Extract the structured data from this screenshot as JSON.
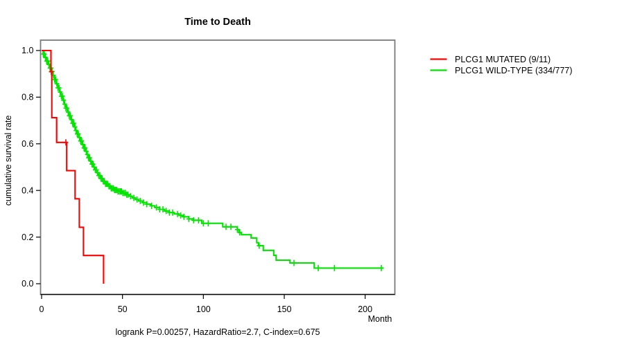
{
  "title": "Time to Death",
  "subtitle": "logrank P=0.00257, HazardRatio=2.7, C-index=0.675",
  "x_axis_label": "Month",
  "y_axis_label": "cumulative survival rate",
  "colors": {
    "mutated": "#ff0000",
    "wild_type": "#00e400",
    "box": "#7a7a7a",
    "axis": "#000000"
  },
  "legend": {
    "items": [
      {
        "label": "PLCG1 MUTATED (9/11)",
        "color": "#ff0000"
      },
      {
        "label": "PLCG1 WILD-TYPE (334/777)",
        "color": "#00e400"
      }
    ]
  },
  "chart_data": {
    "type": "line",
    "subtype": "kaplan-meier-step-curve",
    "title": "Time to Death",
    "xlabel": "Month",
    "ylabel": "cumulative survival rate",
    "footnote": "logrank P=0.00257, HazardRatio=2.7, C-index=0.675",
    "xlim": [
      0,
      218
    ],
    "ylim": [
      0,
      1
    ],
    "xticks": [
      0,
      50,
      100,
      150,
      200
    ],
    "yticks": [
      0.0,
      0.2,
      0.4,
      0.6,
      0.8,
      1.0
    ],
    "grid": false,
    "legend_position": "right-outside-top",
    "series": [
      {
        "name": "PLCG1 WILD-TYPE (334/777)",
        "color": "#00e400",
        "start": [
          0,
          1.0
        ],
        "steps": [
          [
            1,
            0.985
          ],
          [
            2,
            0.97
          ],
          [
            3,
            0.955
          ],
          [
            4,
            0.94
          ],
          [
            5,
            0.925
          ],
          [
            6,
            0.91
          ],
          [
            7,
            0.893
          ],
          [
            8,
            0.875
          ],
          [
            9,
            0.858
          ],
          [
            10,
            0.84
          ],
          [
            11,
            0.822
          ],
          [
            12,
            0.804
          ],
          [
            13,
            0.787
          ],
          [
            14,
            0.77
          ],
          [
            15,
            0.753
          ],
          [
            16,
            0.736
          ],
          [
            17,
            0.72
          ],
          [
            18,
            0.704
          ],
          [
            19,
            0.688
          ],
          [
            20,
            0.672
          ],
          [
            21,
            0.657
          ],
          [
            22,
            0.642
          ],
          [
            23,
            0.627
          ],
          [
            24,
            0.612
          ],
          [
            25,
            0.597
          ],
          [
            26,
            0.582
          ],
          [
            27,
            0.568
          ],
          [
            28,
            0.554
          ],
          [
            29,
            0.54
          ],
          [
            30,
            0.526
          ],
          [
            31,
            0.513
          ],
          [
            32,
            0.5
          ],
          [
            33,
            0.488
          ],
          [
            34,
            0.476
          ],
          [
            35,
            0.464
          ],
          [
            36.5,
            0.451
          ],
          [
            38,
            0.439
          ],
          [
            39.5,
            0.428
          ],
          [
            41,
            0.418
          ],
          [
            43,
            0.409
          ],
          [
            45,
            0.402
          ],
          [
            47,
            0.396
          ],
          [
            50,
            0.389
          ],
          [
            52,
            0.382
          ],
          [
            54,
            0.375
          ],
          [
            56,
            0.368
          ],
          [
            58,
            0.361
          ],
          [
            60,
            0.355
          ],
          [
            62.5,
            0.348
          ],
          [
            65,
            0.341
          ],
          [
            67.5,
            0.334
          ],
          [
            70,
            0.327
          ],
          [
            73,
            0.319
          ],
          [
            76,
            0.312
          ],
          [
            79,
            0.305
          ],
          [
            82,
            0.299
          ],
          [
            85,
            0.293
          ],
          [
            88,
            0.287
          ],
          [
            91,
            0.278
          ],
          [
            94,
            0.272
          ],
          [
            99,
            0.259
          ],
          [
            112,
            0.244
          ],
          [
            121,
            0.232
          ],
          [
            122,
            0.22
          ],
          [
            123.5,
            0.21
          ],
          [
            129.5,
            0.196
          ],
          [
            133,
            0.176
          ],
          [
            134,
            0.163
          ],
          [
            137,
            0.143
          ],
          [
            143.5,
            0.122
          ],
          [
            145,
            0.101
          ],
          [
            153.5,
            0.089
          ],
          [
            168.5,
            0.067
          ]
        ],
        "end_month": 211.4,
        "censor_marks": [
          1,
          1.7,
          2.4,
          3.1,
          3.8,
          4.5,
          5.2,
          5.9,
          6.6,
          7.3,
          8,
          8.7,
          9.4,
          10.1,
          10.8,
          11.5,
          12.2,
          12.9,
          13.6,
          14.3,
          15,
          15.7,
          16.4,
          17.1,
          17.8,
          18.5,
          19.2,
          19.9,
          20.6,
          21.3,
          22,
          22.7,
          23.4,
          24.1,
          24.8,
          25.5,
          26.2,
          26.9,
          27.6,
          28.3,
          29,
          29.7,
          30.4,
          31.1,
          31.8,
          32.5,
          33.2,
          33.9,
          34.6,
          35.3,
          36,
          36.7,
          37.4,
          38.1,
          38.8,
          39.5,
          40.2,
          40.9,
          41.6,
          42.3,
          43,
          43.7,
          44.4,
          45.1,
          45.8,
          46.5,
          47.2,
          48,
          48.7,
          49.4,
          50.2,
          51,
          51.8,
          52.6,
          53.4,
          55,
          57,
          59,
          61,
          63,
          65,
          68,
          71,
          73,
          75,
          77,
          79,
          81,
          84,
          86,
          88,
          91,
          94,
          97,
          100,
          103,
          114,
          117,
          121,
          122.5,
          134.5,
          156,
          171,
          181,
          210
        ]
      },
      {
        "name": "PLCG1 MUTATED (9/11)",
        "color": "#ff0000",
        "start": [
          0,
          1.0
        ],
        "steps": [
          [
            5.8,
            0.909
          ],
          [
            6.3,
            0.712
          ],
          [
            9.3,
            0.606
          ],
          [
            15.5,
            0.485
          ],
          [
            20.7,
            0.364
          ],
          [
            23.3,
            0.242
          ],
          [
            25.9,
            0.121
          ],
          [
            38.3,
            0.0
          ]
        ],
        "end_month": 38.3,
        "censor_marks": [
          6.0,
          15.0
        ]
      }
    ]
  }
}
